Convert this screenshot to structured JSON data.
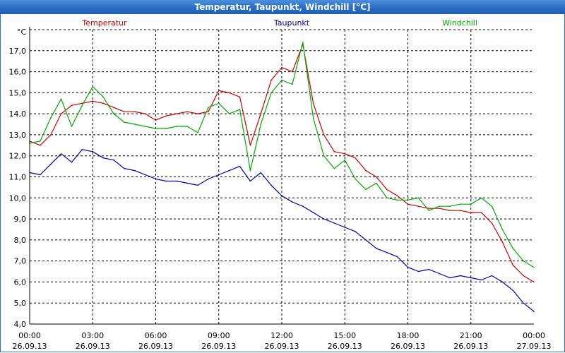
{
  "window": {
    "title": "Temperatur, Taupunkt, Windchill [°C]"
  },
  "colors": {
    "accent": "#2c6fc6",
    "temperatur": "#cc0000",
    "taupunkt": "#0000aa",
    "windchill": "#00aa00"
  },
  "chart_data": {
    "type": "line",
    "title": "Temperatur, Taupunkt, Windchill [°C]",
    "ylabel": "°C",
    "xlabel": "",
    "ylim": [
      4.0,
      18.0
    ],
    "xlim": [
      0,
      24
    ],
    "grid": true,
    "y_ticks": [
      "4,0",
      "5,0",
      "6,0",
      "7,0",
      "8,0",
      "9,0",
      "10,0",
      "11,0",
      "12,0",
      "13,0",
      "14,0",
      "15,0",
      "16,0",
      "17,0"
    ],
    "x_ticks": [
      {
        "time": "00:00",
        "date": "26.09.13"
      },
      {
        "time": "03:00",
        "date": "26.09.13"
      },
      {
        "time": "06:00",
        "date": "26.09.13"
      },
      {
        "time": "09:00",
        "date": "26.09.13"
      },
      {
        "time": "12:00",
        "date": "26.09.13"
      },
      {
        "time": "15:00",
        "date": "26.09.13"
      },
      {
        "time": "18:00",
        "date": "26.09.13"
      },
      {
        "time": "21:00",
        "date": "26.09.13"
      },
      {
        "time": "00:00",
        "date": "27.09.13"
      }
    ],
    "x": [
      0,
      0.5,
      1,
      1.5,
      2,
      2.5,
      3,
      3.5,
      4,
      4.5,
      5,
      5.5,
      6,
      6.5,
      7,
      7.5,
      8,
      8.5,
      9,
      9.5,
      10,
      10.5,
      11,
      11.5,
      12,
      12.5,
      13,
      13.5,
      14,
      14.5,
      15,
      15.5,
      16,
      16.5,
      17,
      17.5,
      18,
      18.5,
      19,
      19.5,
      20,
      20.5,
      21,
      21.5,
      22,
      22.5,
      23,
      23.5,
      24
    ],
    "series": [
      {
        "name": "Temperatur",
        "color": "#cc0000",
        "values": [
          12.7,
          12.5,
          13.0,
          14.0,
          14.4,
          14.5,
          14.6,
          14.5,
          14.3,
          14.1,
          14.1,
          14.0,
          13.7,
          13.9,
          14.0,
          14.1,
          14.0,
          14.1,
          15.1,
          15.0,
          14.8,
          12.5,
          14.0,
          15.6,
          16.2,
          16.0,
          17.3,
          14.5,
          13.0,
          12.2,
          12.1,
          11.9,
          11.3,
          11.0,
          10.4,
          10.1,
          9.7,
          9.6,
          9.5,
          9.5,
          9.4,
          9.4,
          9.3,
          9.3,
          8.8,
          7.9,
          6.8,
          6.3,
          6.0
        ]
      },
      {
        "name": "Taupunkt",
        "color": "#0000aa",
        "values": [
          11.2,
          11.1,
          11.6,
          12.1,
          11.7,
          12.3,
          12.2,
          11.9,
          11.8,
          11.4,
          11.3,
          11.1,
          10.9,
          10.8,
          10.8,
          10.7,
          10.6,
          10.9,
          11.1,
          11.3,
          11.5,
          10.8,
          11.2,
          10.6,
          10.1,
          9.8,
          9.6,
          9.3,
          9.0,
          8.8,
          8.6,
          8.4,
          8.0,
          7.6,
          7.4,
          7.2,
          6.7,
          6.5,
          6.6,
          6.4,
          6.2,
          6.3,
          6.2,
          6.1,
          6.3,
          6.0,
          5.6,
          5.0,
          4.6
        ]
      },
      {
        "name": "Windchill",
        "color": "#00aa00",
        "values": [
          12.6,
          12.7,
          13.8,
          14.7,
          13.4,
          14.4,
          15.3,
          14.8,
          14.0,
          13.6,
          13.5,
          13.4,
          13.3,
          13.3,
          13.4,
          13.4,
          13.1,
          14.3,
          14.5,
          14.0,
          14.2,
          11.3,
          13.5,
          15.0,
          15.6,
          15.4,
          17.4,
          13.8,
          12.0,
          11.4,
          11.8,
          10.9,
          10.4,
          10.7,
          10.0,
          9.9,
          9.9,
          10.0,
          9.4,
          9.6,
          9.6,
          9.7,
          9.7,
          10.0,
          9.6,
          8.5,
          7.6,
          7.0,
          6.7
        ]
      }
    ]
  }
}
